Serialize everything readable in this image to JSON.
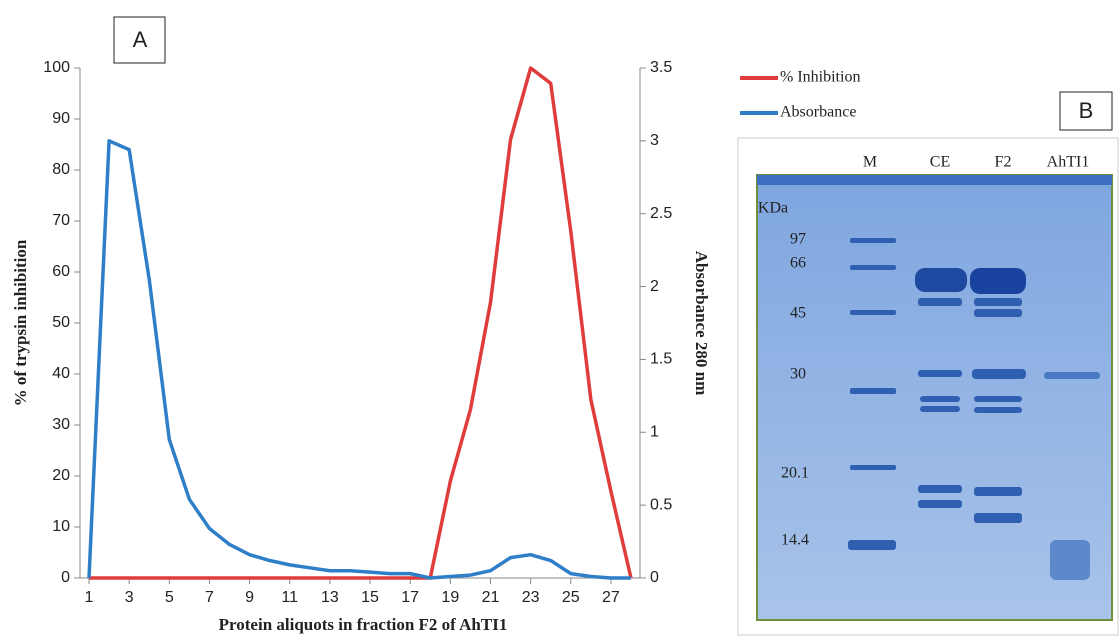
{
  "chart_data": {
    "type": "line",
    "xlabel": "Protein aliquots in fraction F2 of AhTI1",
    "ylabel": "% of trypsin inhibition",
    "y2label": "Absorbance 280 nm",
    "x": [
      1,
      2,
      3,
      4,
      5,
      6,
      7,
      8,
      9,
      10,
      11,
      12,
      13,
      14,
      15,
      16,
      17,
      18,
      19,
      20,
      21,
      22,
      23,
      24,
      25,
      26,
      27,
      28
    ],
    "xlim": [
      1,
      28
    ],
    "xticks": [
      1,
      3,
      5,
      7,
      9,
      11,
      13,
      15,
      17,
      19,
      21,
      23,
      25,
      27
    ],
    "ylim": [
      0,
      100
    ],
    "yticks": [
      0,
      10,
      20,
      30,
      40,
      50,
      60,
      70,
      80,
      90,
      100
    ],
    "y2lim": [
      0,
      3.5
    ],
    "y2ticks": [
      0,
      0.5,
      1,
      1.5,
      2,
      2.5,
      3,
      3.5
    ],
    "series": [
      {
        "name": "% Inhibition",
        "color": "#e03c3c",
        "axis": "y",
        "values": [
          0,
          0,
          0,
          0,
          0,
          0,
          0,
          0,
          0,
          0,
          0,
          0,
          0,
          0,
          0,
          0,
          0,
          0,
          19,
          33,
          54,
          86,
          100,
          97,
          68,
          35,
          17,
          0
        ]
      },
      {
        "name": "Absorbance",
        "color": "#2e7fc8",
        "axis": "y2",
        "values": [
          0,
          3.0,
          2.94,
          2.05,
          0.95,
          0.54,
          0.34,
          0.23,
          0.16,
          0.12,
          0.09,
          0.07,
          0.05,
          0.05,
          0.04,
          0.03,
          0.03,
          0,
          0.01,
          0.02,
          0.05,
          0.14,
          0.16,
          0.12,
          0.03,
          0.01,
          0,
          0
        ]
      }
    ]
  },
  "panel_labels": [
    "A",
    "B"
  ],
  "gel": {
    "unit": "KDa",
    "lanes": [
      "M",
      "CE",
      "F2",
      "AhTI1"
    ],
    "markers": [
      "97",
      "66",
      "45",
      "30",
      "20.1",
      "14.4"
    ]
  }
}
